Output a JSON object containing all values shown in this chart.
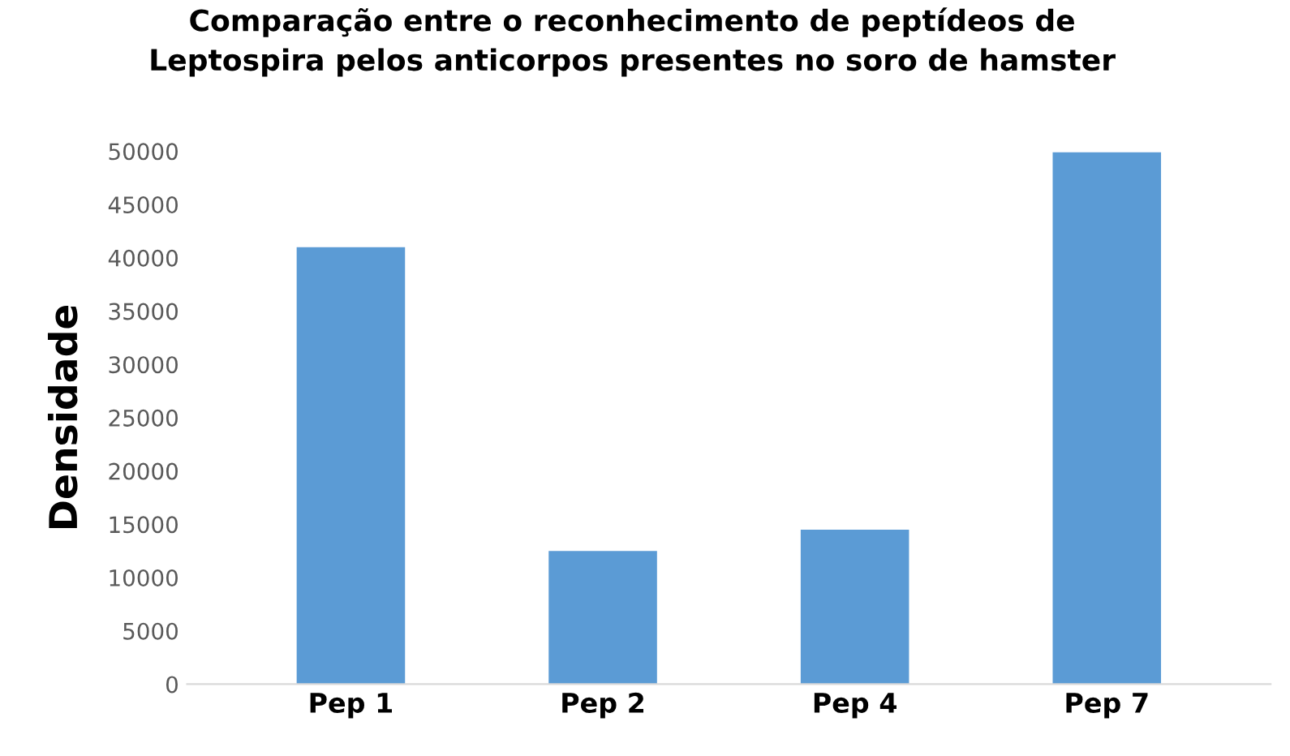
{
  "chart_data": {
    "type": "bar",
    "title": "Comparação entre o reconhecimento de peptídeos de\nLeptospira pelos anticorpos presentes no soro de hamster",
    "ylabel": "Densidade",
    "categories": [
      "Pep 1",
      "Pep 2",
      "Pep 4",
      "Pep 7"
    ],
    "values": [
      41000,
      12500,
      14500,
      49900
    ],
    "color": "#5b9bd5",
    "ylim": [
      0,
      50000
    ],
    "yticks": [
      0,
      5000,
      10000,
      15000,
      20000,
      25000,
      30000,
      35000,
      40000,
      45000,
      50000
    ],
    "grid": false
  }
}
